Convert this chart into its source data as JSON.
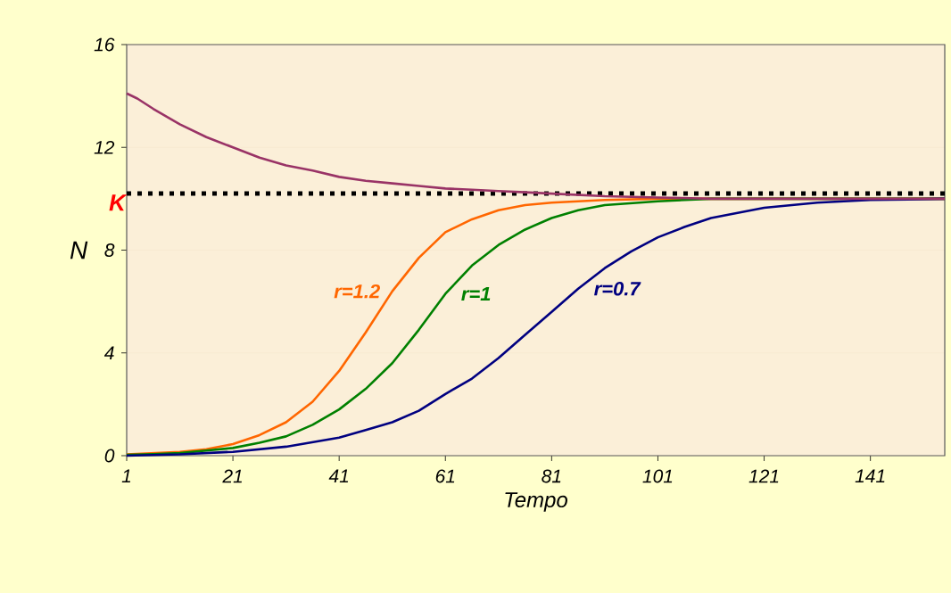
{
  "chart_data": {
    "type": "line",
    "xlabel": "Tempo",
    "ylabel": "N",
    "xlim": [
      1,
      155
    ],
    "ylim": [
      0,
      16
    ],
    "xticks": [
      1,
      21,
      41,
      61,
      81,
      101,
      121,
      141
    ],
    "yticks": [
      0,
      4,
      8,
      12,
      16
    ],
    "grid": "y",
    "legend": false,
    "marker": "none",
    "line_style": "solid",
    "ref_lines": [
      {
        "axis": "y",
        "value": 10.2,
        "label": "K",
        "color": "#000000",
        "line_style": "dotted"
      }
    ],
    "series": [
      {
        "name": "r=1.2",
        "color": "#ff6600",
        "x": [
          1,
          6,
          11,
          16,
          21,
          26,
          31,
          36,
          41,
          46,
          51,
          56,
          61,
          66,
          71,
          76,
          81,
          91,
          101,
          155
        ],
        "values": [
          0.05,
          0.1,
          0.15,
          0.25,
          0.45,
          0.8,
          1.3,
          2.1,
          3.3,
          4.8,
          6.4,
          7.7,
          8.7,
          9.2,
          9.55,
          9.75,
          9.85,
          9.95,
          10,
          10
        ]
      },
      {
        "name": "r=1",
        "color": "#008000",
        "x": [
          1,
          6,
          11,
          16,
          21,
          26,
          31,
          36,
          41,
          46,
          51,
          56,
          61,
          66,
          71,
          76,
          81,
          86,
          91,
          101,
          111,
          155
        ],
        "values": [
          0.03,
          0.06,
          0.1,
          0.2,
          0.3,
          0.5,
          0.75,
          1.2,
          1.8,
          2.6,
          3.6,
          4.9,
          6.3,
          7.4,
          8.2,
          8.8,
          9.25,
          9.55,
          9.75,
          9.9,
          10,
          10
        ]
      },
      {
        "name": "r=0.7",
        "color": "#000080",
        "x": [
          1,
          11,
          21,
          31,
          41,
          46,
          51,
          56,
          61,
          66,
          71,
          76,
          81,
          86,
          91,
          96,
          101,
          106,
          111,
          121,
          131,
          141,
          155
        ],
        "values": [
          0,
          0.05,
          0.15,
          0.35,
          0.7,
          1.0,
          1.3,
          1.75,
          2.4,
          3.0,
          3.8,
          4.7,
          5.6,
          6.5,
          7.3,
          7.95,
          8.5,
          8.9,
          9.25,
          9.65,
          9.85,
          9.95,
          10
        ]
      },
      {
        "color": "#993366",
        "x": [
          1,
          3,
          6,
          11,
          16,
          21,
          26,
          31,
          36,
          41,
          46,
          51,
          56,
          61,
          66,
          71,
          76,
          81,
          91,
          101,
          111,
          155
        ],
        "values": [
          14.1,
          13.9,
          13.5,
          12.9,
          12.4,
          12.0,
          11.6,
          11.3,
          11.1,
          10.85,
          10.7,
          10.6,
          10.5,
          10.4,
          10.35,
          10.3,
          10.25,
          10.2,
          10.1,
          10.05,
          10.0,
          10.0
        ]
      }
    ]
  }
}
